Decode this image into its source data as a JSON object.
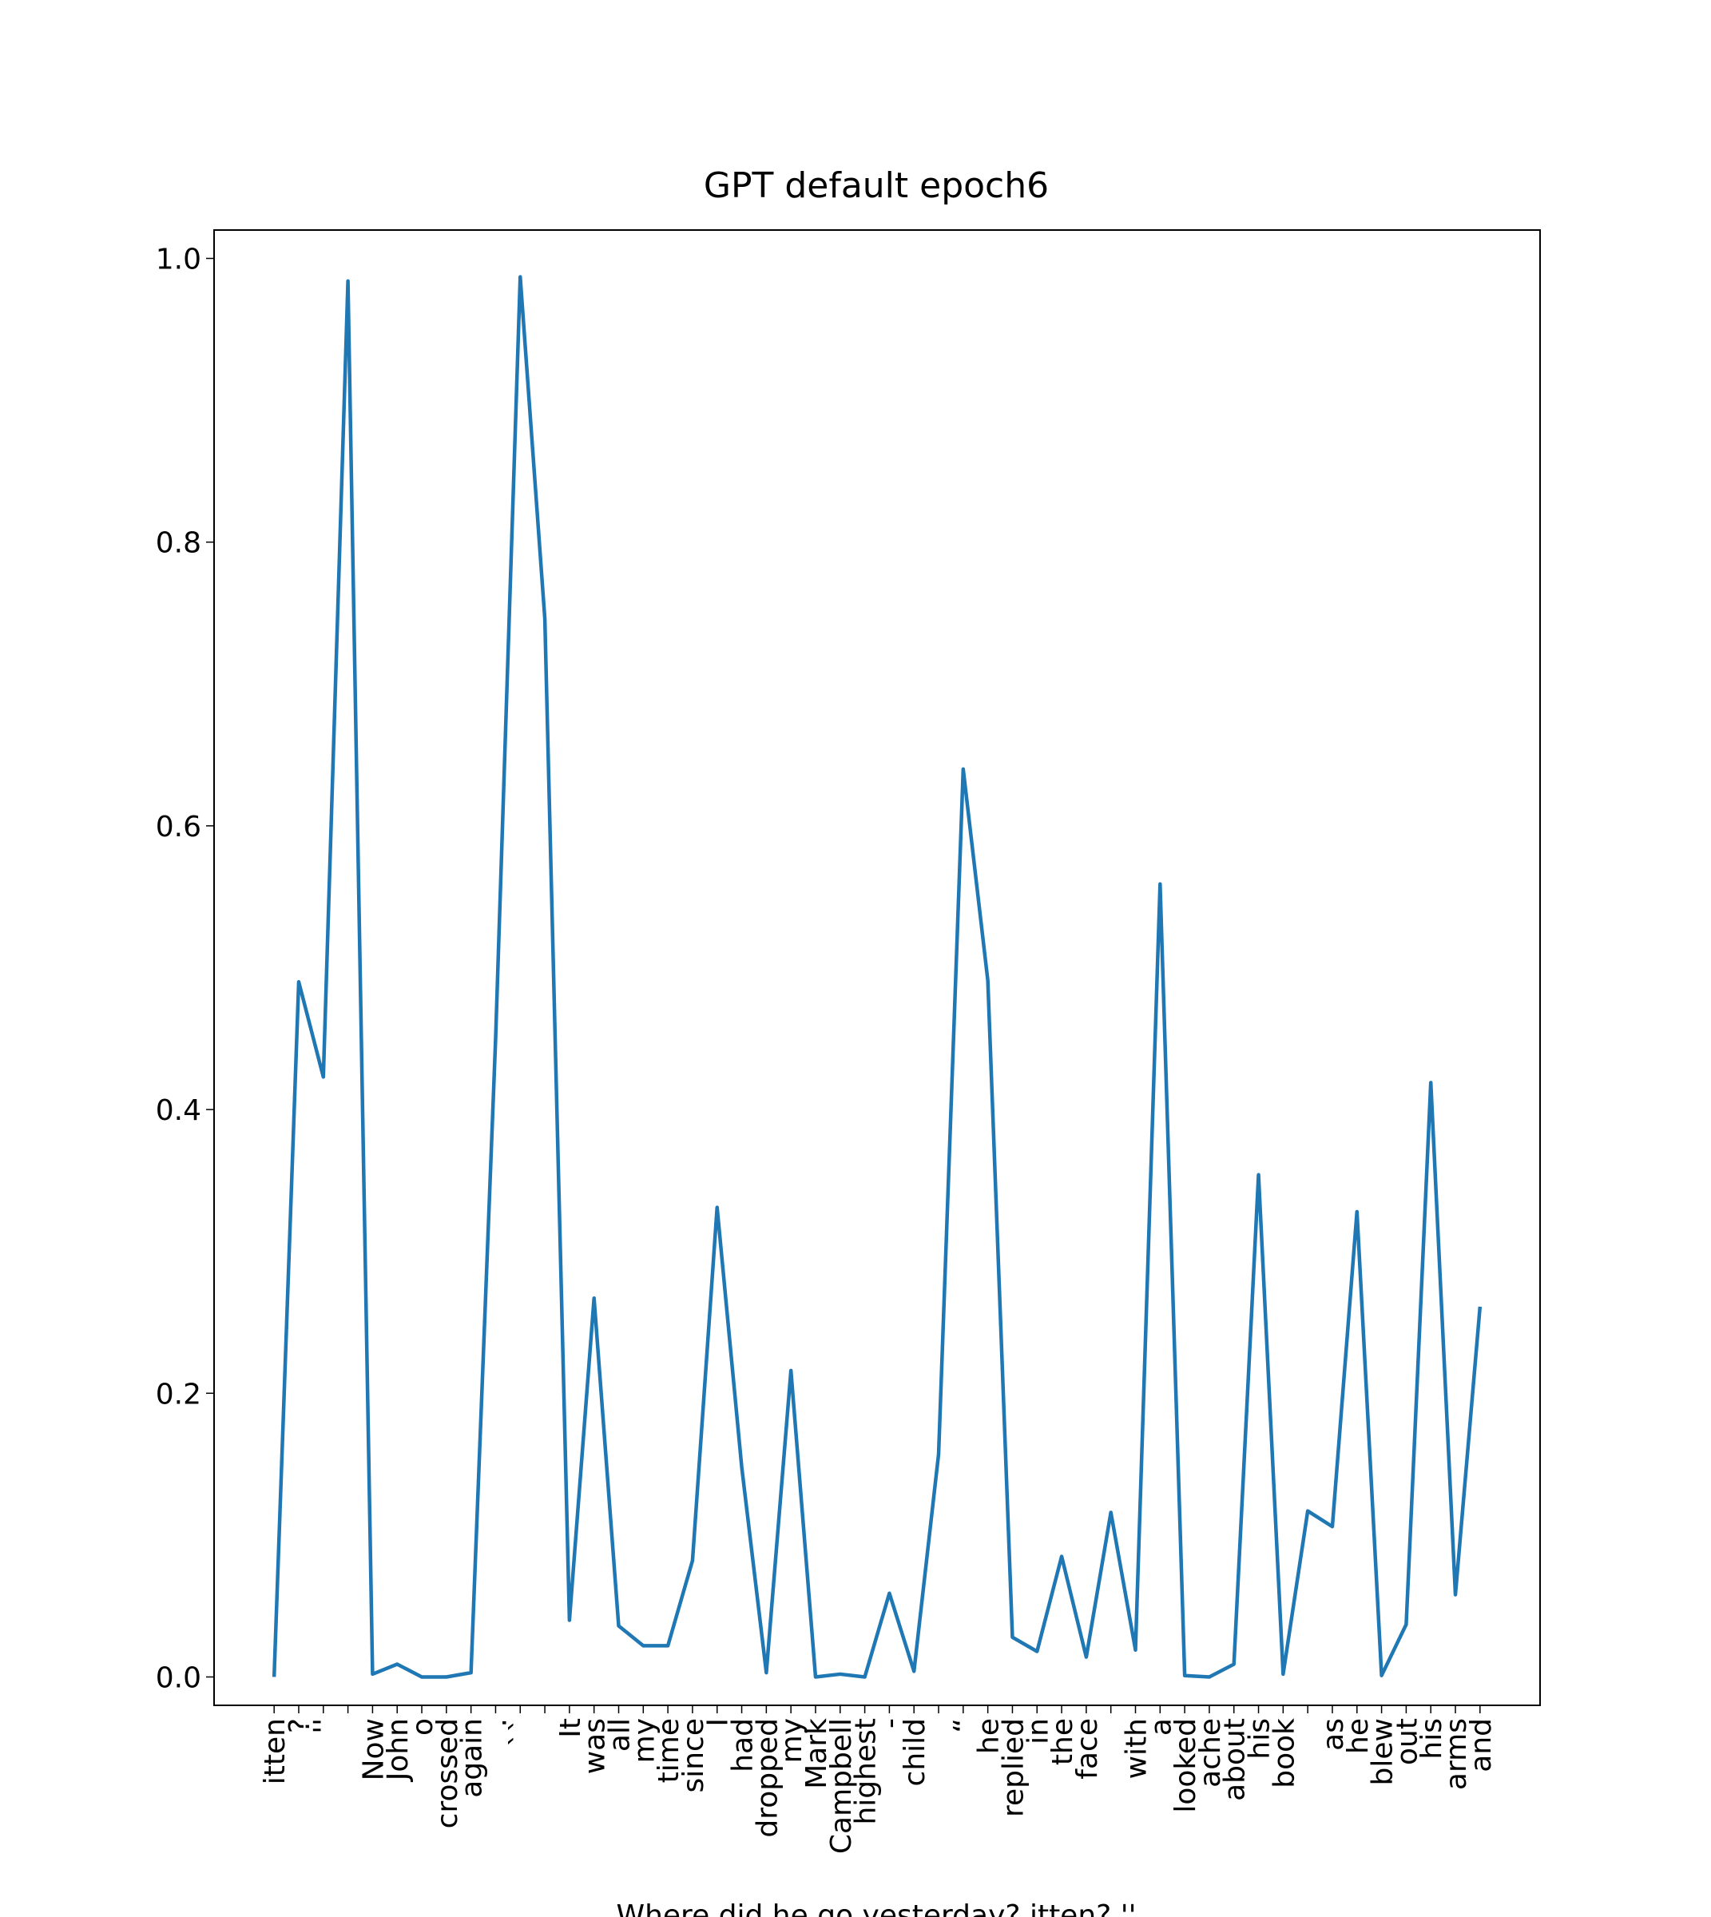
{
  "chart_data": {
    "type": "line",
    "title": "GPT default epoch6",
    "x_label": "Where did he go yesterday? itten? ''",
    "categories": [
      "itten",
      "?",
      "''",
      null,
      "Now",
      "John",
      "o",
      "crossed",
      "again",
      ".",
      "``",
      null,
      "It",
      "was",
      "all",
      "my",
      "time",
      "since",
      "I",
      "had",
      "dropped",
      "my",
      "Mark",
      "Campbell",
      "highest",
      "-",
      "child",
      null,
      "“",
      "he",
      "replied",
      "in",
      "the",
      "face",
      null,
      "with",
      "a",
      "looked",
      "ache",
      "about",
      "his",
      "book",
      null,
      "as",
      "he",
      "blew",
      "out",
      "his",
      "arms",
      "and"
    ],
    "values": [
      0.0,
      0.49,
      0.423,
      0.984,
      0.002,
      0.009,
      0.0,
      0.0,
      0.003,
      0.45,
      0.987,
      0.746,
      0.04,
      0.267,
      0.036,
      0.022,
      0.022,
      0.082,
      0.331,
      0.148,
      0.003,
      0.216,
      0.0,
      0.002,
      0.0,
      0.059,
      0.004,
      0.157,
      0.64,
      0.491,
      0.028,
      0.018,
      0.085,
      0.014,
      0.116,
      0.019,
      0.559,
      0.001,
      0.0,
      0.009,
      0.354,
      0.002,
      0.117,
      0.106,
      0.328,
      0.001,
      0.037,
      0.419,
      0.058,
      0.261
    ],
    "color": "#1f77b4",
    "ylim": [
      -0.02,
      1.02
    ],
    "yticks": [
      {
        "value": 0,
        "label": "0.0"
      },
      0.2,
      0.4,
      0.6,
      0.8,
      {
        "value": 1,
        "label": "1.0"
      }
    ]
  }
}
